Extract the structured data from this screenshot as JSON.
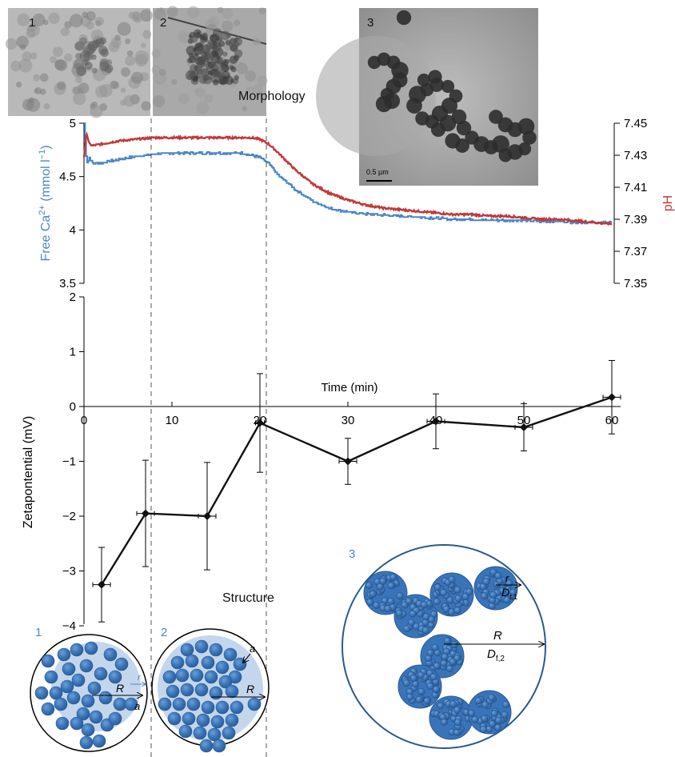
{
  "figure": {
    "morphology_label": "Morphology",
    "structure_label": "Structure",
    "panels": [
      "1",
      "2",
      "3"
    ],
    "scale_bar": "0.5 µm",
    "schematic_labels": {
      "R": "R",
      "a": "a",
      "r": "r",
      "D_main": "D",
      "D_sub_f2": "f,2",
      "D_sub_f1": "f,1"
    }
  },
  "chart_data": [
    {
      "type": "line",
      "xlabel": "",
      "ylabel": "Free Ca2+ (mmol l−1)",
      "ylabel_parts": [
        "Free Ca",
        "2+",
        " (mmol l",
        "−1",
        ")"
      ],
      "y2label": "pH",
      "xlim": [
        0,
        60
      ],
      "ylim": [
        3.5,
        5
      ],
      "y2lim": [
        7.35,
        7.45
      ],
      "yticks": [
        "5",
        "4.5",
        "4",
        "3.5"
      ],
      "ytick_values": [
        5,
        4.5,
        4,
        3.5
      ],
      "y2ticks": [
        "7.45",
        "7.43",
        "7.41",
        "7.39",
        "7.37",
        "7.35"
      ],
      "y2tick_values": [
        7.45,
        7.43,
        7.41,
        7.39,
        7.37,
        7.35
      ],
      "colors": {
        "calcium": "#4a86c8",
        "ph": "#c0393b"
      },
      "series": [
        {
          "key": "calcium",
          "axis": "left",
          "x": [
            0,
            0.3,
            0.6,
            1,
            2,
            4,
            6,
            8,
            10,
            12,
            14,
            16,
            18,
            19,
            20,
            21,
            22,
            24,
            26,
            28,
            30,
            32,
            34,
            36,
            38,
            40,
            42,
            44,
            46,
            48,
            50,
            52,
            54,
            56,
            58,
            60
          ],
          "values": [
            5.0,
            4.62,
            4.68,
            4.62,
            4.63,
            4.66,
            4.69,
            4.71,
            4.72,
            4.72,
            4.72,
            4.72,
            4.72,
            4.7,
            4.68,
            4.62,
            4.52,
            4.38,
            4.27,
            4.2,
            4.17,
            4.15,
            4.14,
            4.13,
            4.12,
            4.11,
            4.1,
            4.1,
            4.09,
            4.09,
            4.09,
            4.08,
            4.08,
            4.07,
            4.07,
            4.07
          ]
        },
        {
          "key": "ph",
          "axis": "right",
          "x": [
            0,
            0.3,
            0.6,
            1,
            2,
            4,
            6,
            8,
            10,
            12,
            14,
            16,
            18,
            19,
            20,
            21,
            22,
            24,
            26,
            28,
            30,
            32,
            34,
            36,
            38,
            40,
            42,
            44,
            46,
            48,
            50,
            52,
            54,
            56,
            58,
            60
          ],
          "values": [
            7.429,
            7.444,
            7.437,
            7.436,
            7.437,
            7.439,
            7.44,
            7.441,
            7.441,
            7.441,
            7.441,
            7.441,
            7.441,
            7.441,
            7.44,
            7.437,
            7.432,
            7.421,
            7.412,
            7.406,
            7.402,
            7.399,
            7.397,
            7.396,
            7.395,
            7.394,
            7.393,
            7.393,
            7.392,
            7.392,
            7.391,
            7.39,
            7.39,
            7.389,
            7.388,
            7.387
          ]
        }
      ]
    },
    {
      "type": "line",
      "xlabel": "Time (min)",
      "ylabel": "Zetapontential (mV)",
      "xlim": [
        0,
        60
      ],
      "ylim": [
        -4,
        2
      ],
      "xticks": [
        "0",
        "10",
        "20",
        "30",
        "40",
        "50",
        "60"
      ],
      "xtick_values": [
        0,
        10,
        20,
        30,
        40,
        50,
        60
      ],
      "yticks": [
        "2",
        "1",
        "0",
        "−1",
        "−2",
        "−3",
        "−4"
      ],
      "ytick_values": [
        2,
        1,
        0,
        -1,
        -2,
        -3,
        -4
      ],
      "series": [
        {
          "x": [
            2,
            7,
            14,
            20,
            30,
            40,
            50,
            60
          ],
          "values": [
            -3.25,
            -1.95,
            -2.0,
            -0.3,
            -1.0,
            -0.27,
            -0.38,
            0.17
          ],
          "yerr": [
            0.68,
            0.97,
            0.98,
            0.9,
            0.42,
            0.5,
            0.43,
            0.67
          ],
          "xerr": [
            1,
            1,
            1,
            0.5,
            1,
            1,
            1,
            1
          ]
        }
      ]
    }
  ]
}
